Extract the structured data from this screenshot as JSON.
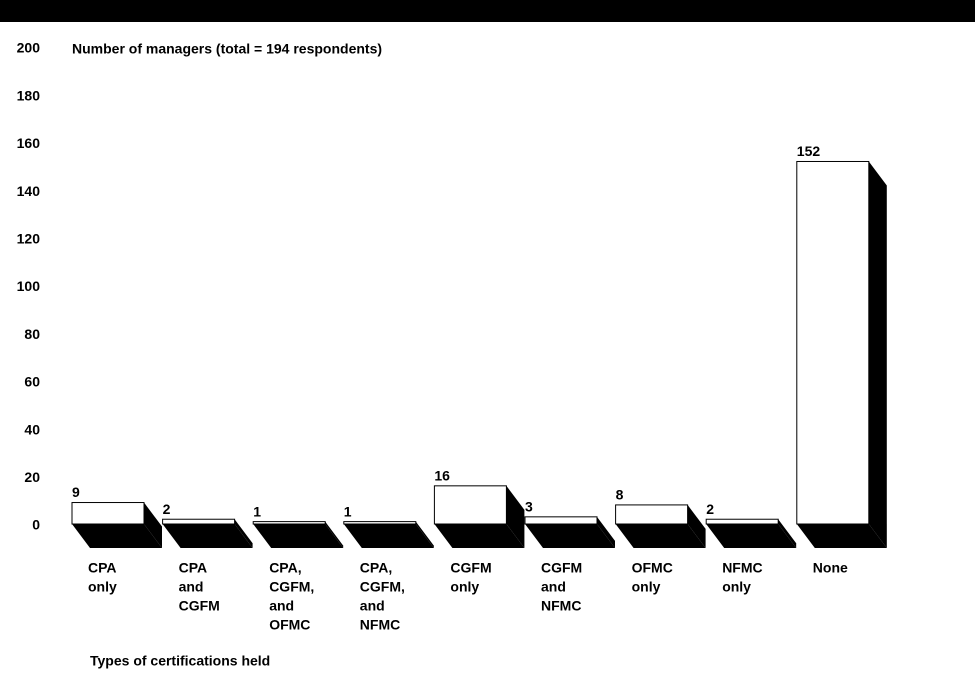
{
  "chart_data": {
    "type": "bar3d",
    "title": "Number of managers (total = 194 respondents)",
    "x_label": "Types of certifications held",
    "categories": [
      [
        "CPA",
        "only"
      ],
      [
        "CPA",
        "and",
        "CGFM"
      ],
      [
        "CPA,",
        "CGFM,",
        "and",
        "OFMC"
      ],
      [
        "CPA,",
        "CGFM,",
        "and",
        "NFMC"
      ],
      [
        "CGFM",
        "only"
      ],
      [
        "CGFM",
        "and",
        "NFMC"
      ],
      [
        "OFMC",
        "only"
      ],
      [
        "NFMC",
        "only"
      ],
      [
        "None"
      ]
    ],
    "values": [
      9,
      2,
      1,
      1,
      16,
      3,
      8,
      2,
      152
    ],
    "color": "#ffffff",
    "depth_color": "#000000",
    "ylim": [
      0,
      200
    ],
    "yticks": [
      0,
      20,
      40,
      60,
      80,
      100,
      120,
      140,
      160,
      180,
      200
    ],
    "grid": false
  }
}
